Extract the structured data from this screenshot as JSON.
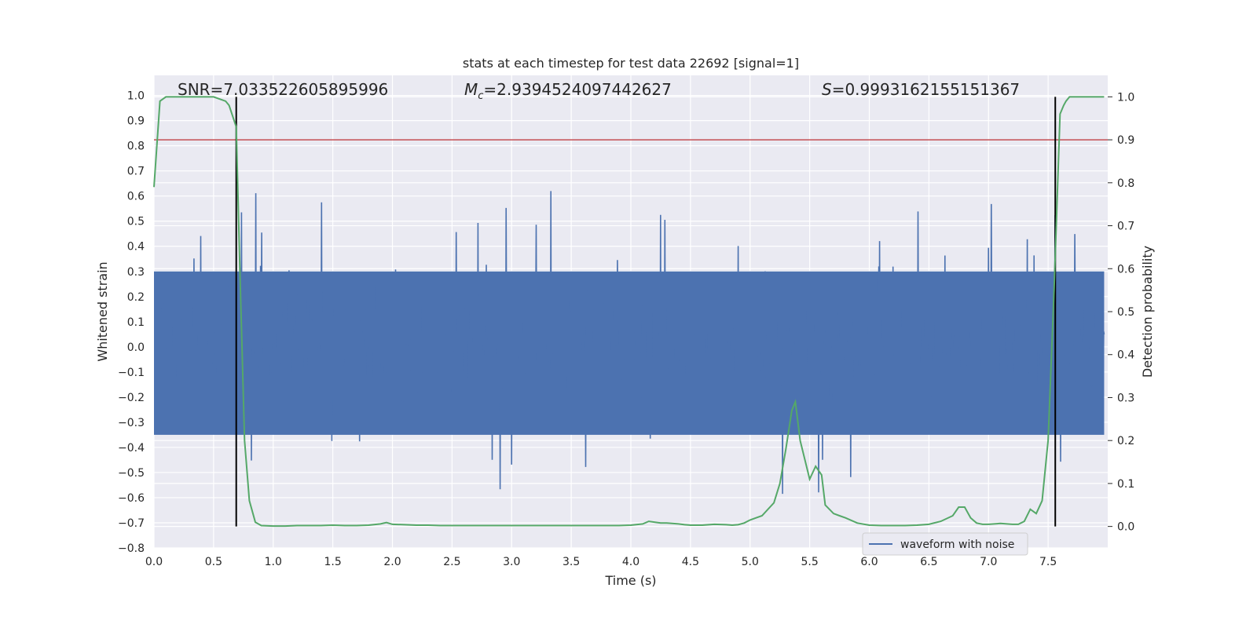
{
  "chart_data": {
    "type": "line",
    "title": "stats at each timestep for test data 22692 [signal=1]",
    "xlabel": "Time (s)",
    "ylabel_left": "Whitened strain",
    "ylabel_right": "Detection probability",
    "xlim": [
      0.0,
      8.0
    ],
    "ylim_left": [
      -0.8,
      1.08
    ],
    "ylim_right": [
      -0.05,
      1.05
    ],
    "grid": true,
    "legend_position": "bottom-right",
    "xticks": [
      "0.0",
      "0.5",
      "1.0",
      "1.5",
      "2.0",
      "2.5",
      "3.0",
      "3.5",
      "4.0",
      "4.5",
      "5.0",
      "5.5",
      "6.0",
      "6.5",
      "7.0",
      "7.5"
    ],
    "yticks_left": [
      "1.0",
      "0.9",
      "0.8",
      "0.7",
      "0.6",
      "0.5",
      "0.4",
      "0.3",
      "0.2",
      "0.1",
      "0.0",
      "−0.1",
      "−0.2",
      "−0.3",
      "−0.4",
      "−0.5",
      "−0.6",
      "−0.7",
      "−0.8"
    ],
    "yticks_right": [
      "1.0",
      "0.9",
      "0.8",
      "0.7",
      "0.6",
      "0.5",
      "0.4",
      "0.3",
      "0.2",
      "0.1",
      "0.0"
    ],
    "annotations": {
      "snr": "SNR=7.033522605895996",
      "mc_symbol": "M",
      "mc_sub": "c",
      "mc_value": "=2.9394524097442627",
      "s_symbol": "S",
      "s_value": "=0.9993162155151367"
    },
    "threshold": {
      "value": 0.9,
      "axis": "right",
      "color": "#c44e52"
    },
    "vertical_lines": {
      "x": [
        0.69,
        7.56
      ],
      "color": "#000000"
    },
    "series": [
      {
        "name": "waveform with noise",
        "axis": "left",
        "color": "#4c72b0",
        "kind": "noise",
        "envelope": {
          "typical_min": -0.35,
          "typical_max": 0.3,
          "peak_max": 0.71,
          "peak_min": -0.72
        }
      },
      {
        "name": "detection probability",
        "axis": "right",
        "color": "#55a868",
        "x": [
          0.0,
          0.05,
          0.1,
          0.15,
          0.2,
          0.3,
          0.4,
          0.5,
          0.6,
          0.63,
          0.69,
          0.72,
          0.76,
          0.8,
          0.85,
          0.9,
          1.0,
          1.1,
          1.2,
          1.3,
          1.4,
          1.5,
          1.6,
          1.7,
          1.8,
          1.9,
          1.95,
          2.0,
          2.1,
          2.2,
          2.3,
          2.4,
          2.5,
          2.6,
          2.7,
          2.8,
          2.9,
          3.0,
          3.1,
          3.2,
          3.3,
          3.4,
          3.5,
          3.6,
          3.7,
          3.8,
          3.9,
          4.0,
          4.1,
          4.15,
          4.25,
          4.3,
          4.4,
          4.45,
          4.5,
          4.6,
          4.7,
          4.8,
          4.85,
          4.9,
          4.95,
          5.0,
          5.05,
          5.1,
          5.2,
          5.25,
          5.3,
          5.35,
          5.38,
          5.42,
          5.5,
          5.55,
          5.6,
          5.63,
          5.7,
          5.75,
          5.8,
          5.9,
          6.0,
          6.1,
          6.2,
          6.3,
          6.4,
          6.5,
          6.6,
          6.7,
          6.75,
          6.8,
          6.85,
          6.9,
          6.95,
          7.0,
          7.1,
          7.2,
          7.25,
          7.3,
          7.35,
          7.4,
          7.45,
          7.5,
          7.55,
          7.6,
          7.63,
          7.65,
          7.68,
          7.72,
          7.8,
          7.9,
          7.97
        ],
        "values": [
          0.79,
          0.99,
          1.0,
          1.0,
          1.0,
          1.0,
          1.0,
          1.0,
          0.99,
          0.98,
          0.93,
          0.6,
          0.2,
          0.06,
          0.01,
          0.002,
          0.001,
          0.001,
          0.002,
          0.002,
          0.002,
          0.003,
          0.002,
          0.002,
          0.003,
          0.006,
          0.009,
          0.005,
          0.004,
          0.003,
          0.003,
          0.002,
          0.002,
          0.002,
          0.002,
          0.002,
          0.002,
          0.002,
          0.002,
          0.002,
          0.002,
          0.002,
          0.002,
          0.002,
          0.002,
          0.002,
          0.002,
          0.003,
          0.006,
          0.012,
          0.008,
          0.008,
          0.006,
          0.004,
          0.003,
          0.003,
          0.005,
          0.004,
          0.003,
          0.004,
          0.008,
          0.015,
          0.02,
          0.025,
          0.055,
          0.1,
          0.18,
          0.27,
          0.29,
          0.2,
          0.11,
          0.14,
          0.12,
          0.05,
          0.03,
          0.025,
          0.02,
          0.008,
          0.003,
          0.002,
          0.002,
          0.002,
          0.003,
          0.005,
          0.012,
          0.025,
          0.045,
          0.045,
          0.02,
          0.008,
          0.005,
          0.005,
          0.007,
          0.005,
          0.005,
          0.012,
          0.04,
          0.03,
          0.06,
          0.2,
          0.55,
          0.96,
          0.98,
          0.99,
          1.0,
          1.0,
          1.0,
          1.0,
          1.0
        ]
      }
    ]
  }
}
